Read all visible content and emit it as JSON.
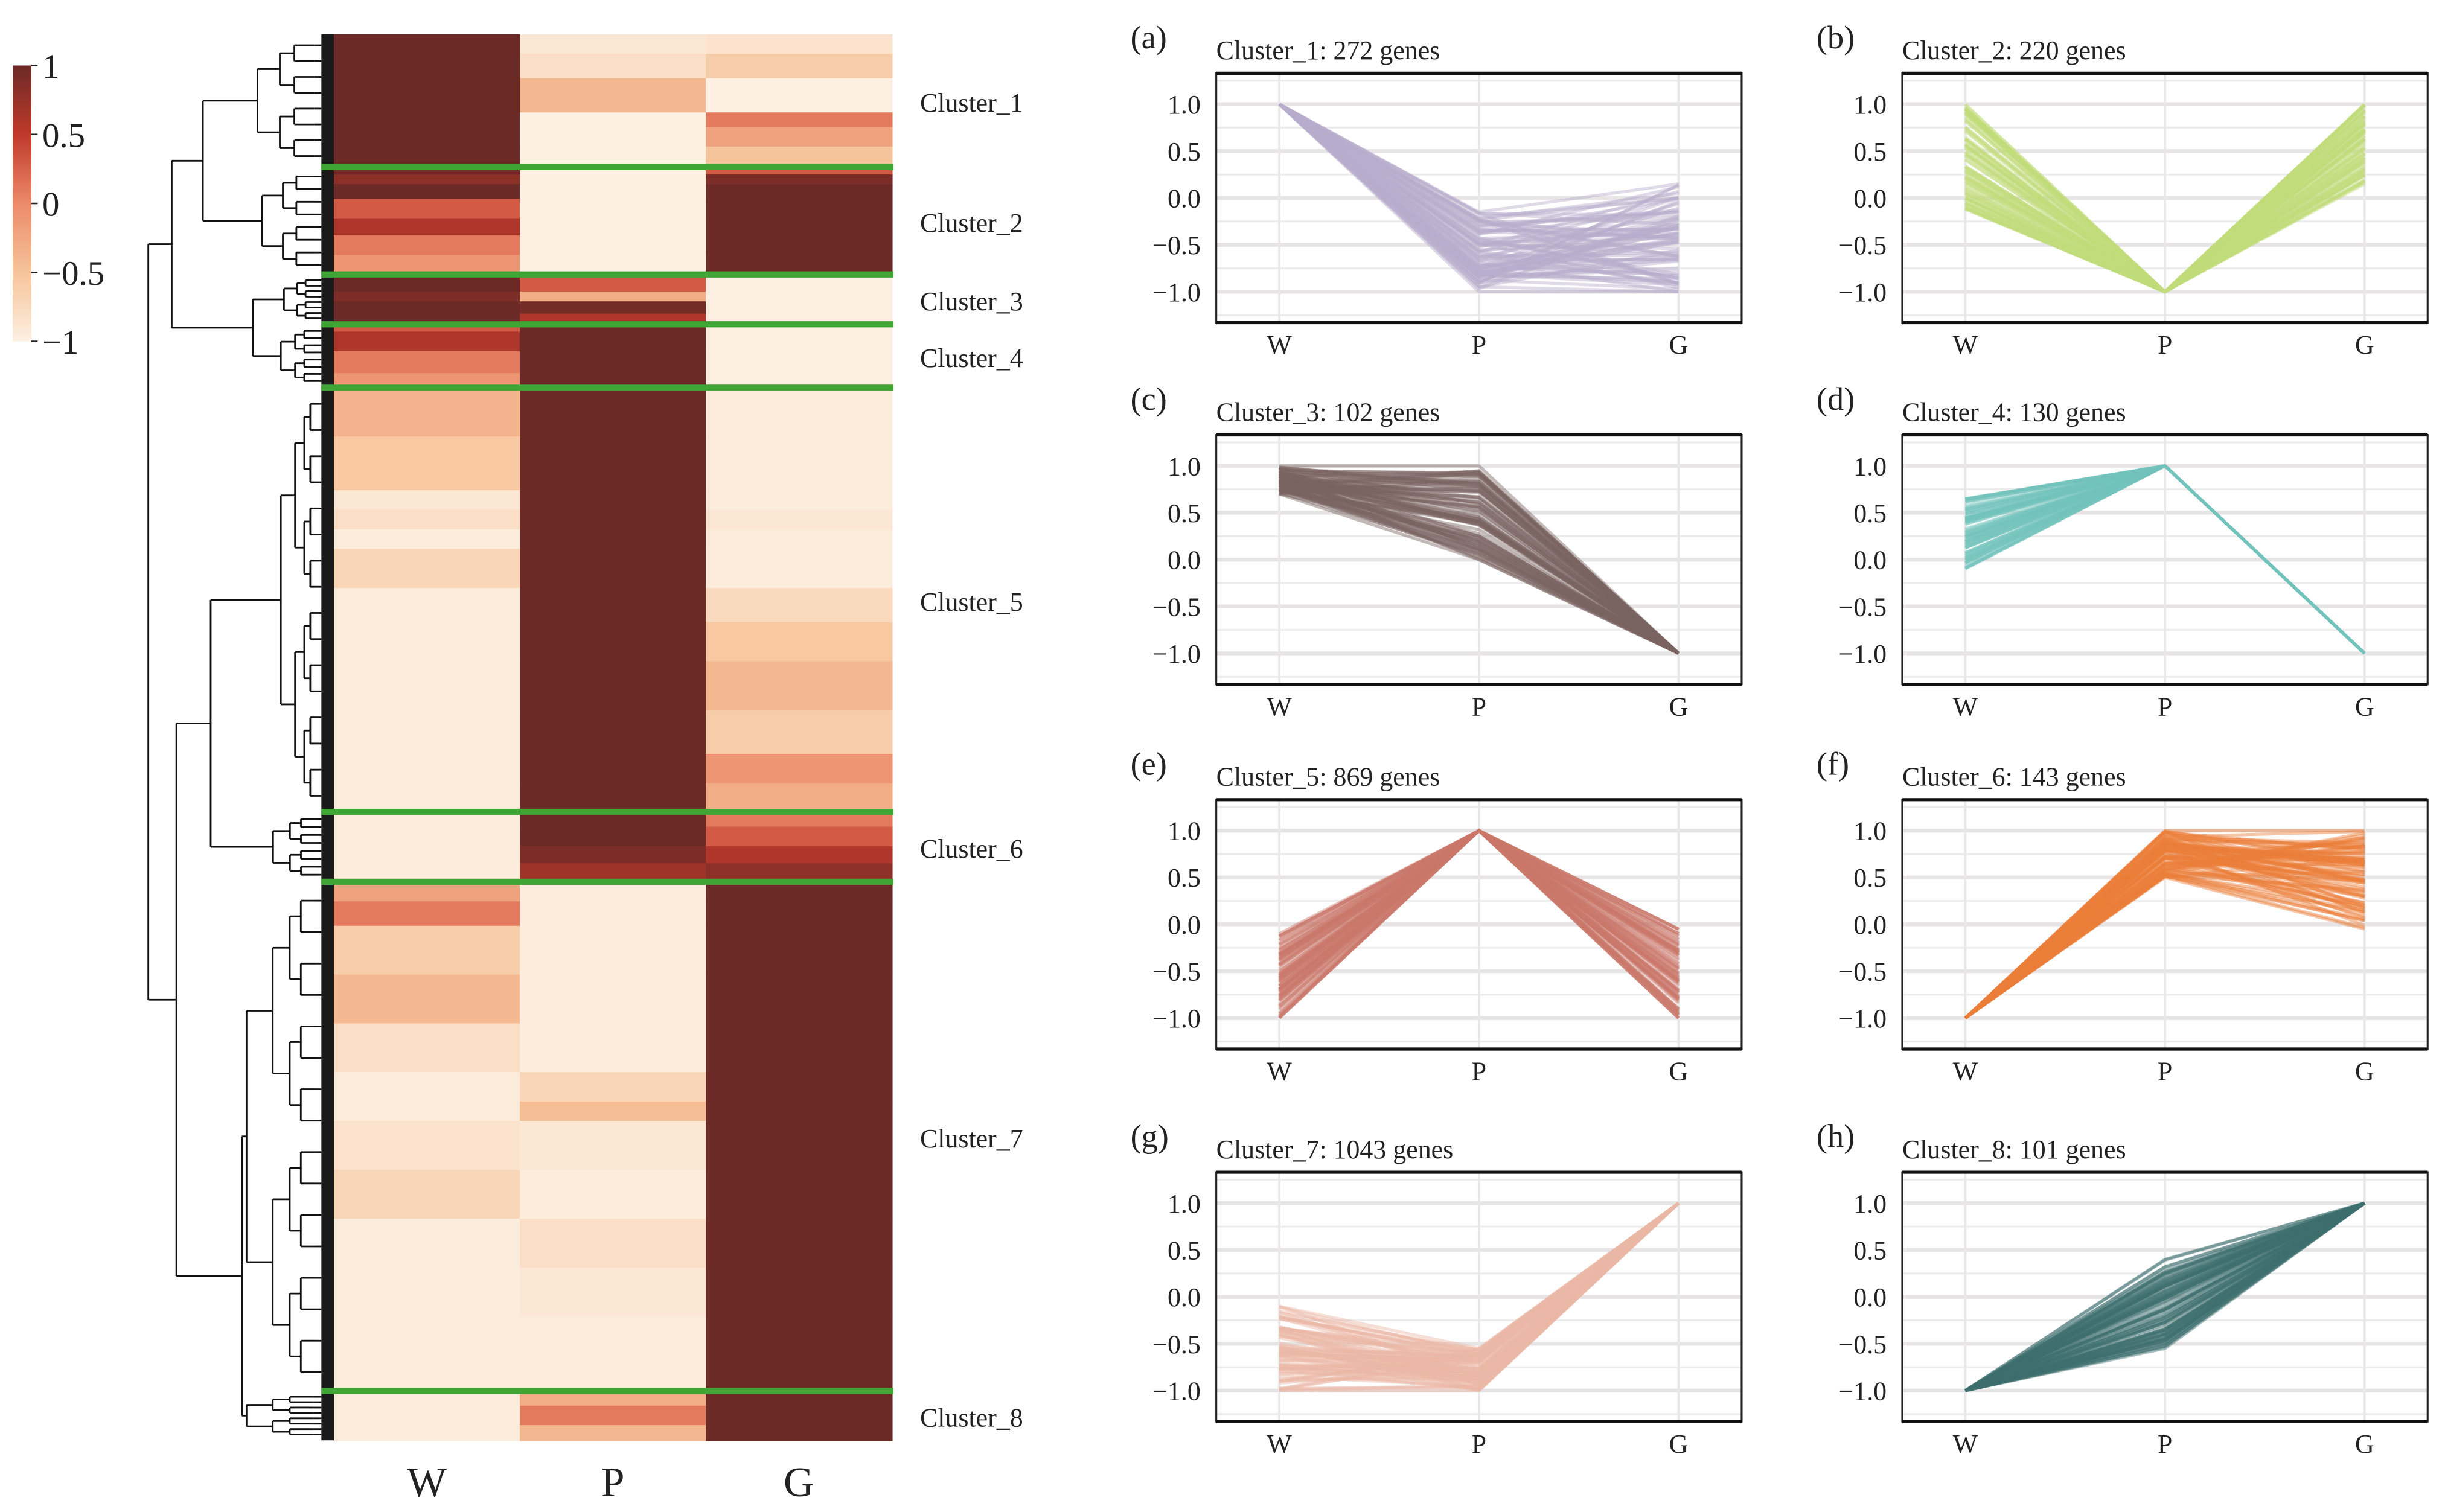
{
  "colorbar": {
    "ticks": [
      "1",
      "0.5",
      "0",
      "−0.5",
      "−1"
    ],
    "tick_values": [
      1,
      0.5,
      0,
      -0.5,
      -1
    ],
    "colors": [
      "#6b2a26",
      "#c0392b",
      "#ec8a6a",
      "#f6c49a",
      "#fdf0e3"
    ]
  },
  "separator_color": "#3fa535",
  "chart_data": [
    {
      "type": "heatmap",
      "title": "",
      "columns": [
        "W",
        "P",
        "G"
      ],
      "value_range": [
        -1,
        1
      ],
      "clusters": [
        {
          "label": "Cluster_1",
          "genes": 272,
          "stripes": [
            [
              40,
              1,
              -0.9,
              -0.85
            ],
            [
              50,
              1,
              -0.8,
              -0.6
            ],
            [
              70,
              1,
              -0.4,
              -1
            ],
            [
              30,
              1,
              -1,
              0.1
            ],
            [
              40,
              1,
              -1,
              -0.2
            ],
            [
              42,
              1,
              -1,
              -0.5
            ]
          ]
        },
        {
          "label": "Cluster_2",
          "genes": 220,
          "stripes": [
            [
              15,
              1,
              -1,
              0.3
            ],
            [
              20,
              0.8,
              -1,
              0.9
            ],
            [
              30,
              1,
              -1,
              1
            ],
            [
              40,
              0.3,
              -1,
              1
            ],
            [
              35,
              0.6,
              -1,
              1
            ],
            [
              40,
              0.1,
              -1,
              1
            ],
            [
              40,
              -0.1,
              -1,
              1
            ]
          ]
        },
        {
          "label": "Cluster_3",
          "genes": 102,
          "stripes": [
            [
              35,
              1,
              0.3,
              -1
            ],
            [
              20,
              0.9,
              -0.3,
              -1
            ],
            [
              25,
              1,
              0.95,
              -1
            ],
            [
              22,
              1,
              0.6,
              -1
            ]
          ]
        },
        {
          "label": "Cluster_4",
          "genes": 130,
          "stripes": [
            [
              15,
              0.3,
              1,
              -1
            ],
            [
              40,
              0.6,
              1,
              -1
            ],
            [
              45,
              0.1,
              1,
              -1
            ],
            [
              30,
              -0.1,
              1,
              -1
            ]
          ]
        },
        {
          "label": "Cluster_5",
          "genes": 869,
          "stripes": [
            [
              100,
              -0.35,
              1,
              -0.95
            ],
            [
              110,
              -0.55,
              1,
              -0.95
            ],
            [
              40,
              -0.9,
              1,
              -0.95
            ],
            [
              40,
              -0.8,
              1,
              -0.9
            ],
            [
              40,
              -0.95,
              1,
              -0.95
            ],
            [
              80,
              -0.7,
              1,
              -0.95
            ],
            [
              70,
              -0.95,
              1,
              -0.75
            ],
            [
              80,
              -0.95,
              1,
              -0.55
            ],
            [
              100,
              -0.95,
              1,
              -0.4
            ],
            [
              90,
              -0.95,
              1,
              -0.6
            ],
            [
              60,
              -0.95,
              1,
              -0.1
            ],
            [
              59,
              -0.95,
              1,
              -0.3
            ]
          ]
        },
        {
          "label": "Cluster_6",
          "genes": 143,
          "stripes": [
            [
              30,
              -0.95,
              1,
              0.1
            ],
            [
              40,
              -0.95,
              1,
              0.3
            ],
            [
              35,
              -0.95,
              0.9,
              0.6
            ],
            [
              38,
              -0.95,
              0.7,
              0.8
            ]
          ]
        },
        {
          "label": "Cluster_7",
          "genes": 1043,
          "stripes": [
            [
              40,
              -0.2,
              -0.95,
              1
            ],
            [
              50,
              0.1,
              -0.95,
              1
            ],
            [
              100,
              -0.6,
              -0.95,
              1
            ],
            [
              100,
              -0.4,
              -0.95,
              1
            ],
            [
              100,
              -0.8,
              -0.95,
              1
            ],
            [
              60,
              -0.95,
              -0.7,
              1
            ],
            [
              40,
              -0.95,
              -0.45,
              1
            ],
            [
              100,
              -0.85,
              -0.9,
              1
            ],
            [
              100,
              -0.7,
              -0.95,
              1
            ],
            [
              100,
              -0.95,
              -0.8,
              1
            ],
            [
              100,
              -0.95,
              -0.9,
              1
            ],
            [
              153,
              -0.95,
              -0.95,
              1
            ]
          ]
        },
        {
          "label": "Cluster_8",
          "genes": 101,
          "stripes": [
            [
              30,
              -0.95,
              -0.3,
              1
            ],
            [
              40,
              -0.95,
              0.1,
              1
            ],
            [
              31,
              -0.95,
              -0.4,
              1
            ]
          ]
        }
      ]
    },
    {
      "type": "line",
      "panel": "(a)",
      "title": "Cluster_1: 272 genes",
      "color": "#b9aecb",
      "categories": [
        "W",
        "P",
        "G"
      ],
      "ranges": [
        [
          1,
          1
        ],
        [
          -1,
          -0.15
        ],
        [
          -1,
          0.15
        ]
      ],
      "yticks": [
        "1.0",
        "0.5",
        "0.0",
        "−0.5",
        "−1.0"
      ],
      "ylim": [
        -1.33,
        1.33
      ]
    },
    {
      "type": "line",
      "panel": "(b)",
      "title": "Cluster_2: 220 genes",
      "color": "#c2dc7a",
      "categories": [
        "W",
        "P",
        "G"
      ],
      "ranges": [
        [
          -0.12,
          1
        ],
        [
          -1,
          -1
        ],
        [
          0.15,
          1
        ]
      ],
      "yticks": [
        "1.0",
        "0.5",
        "0.0",
        "−0.5",
        "−1.0"
      ],
      "ylim": [
        -1.33,
        1.33
      ]
    },
    {
      "type": "line",
      "panel": "(c)",
      "title": "Cluster_3: 102 genes",
      "color": "#7a6462",
      "categories": [
        "W",
        "P",
        "G"
      ],
      "ranges": [
        [
          0.7,
          1
        ],
        [
          0,
          1
        ],
        [
          -1,
          -1
        ]
      ],
      "yticks": [
        "1.0",
        "0.5",
        "0.0",
        "−0.5",
        "−1.0"
      ],
      "ylim": [
        -1.33,
        1.33
      ]
    },
    {
      "type": "line",
      "panel": "(d)",
      "title": "Cluster_4: 130 genes",
      "color": "#74c3bd",
      "categories": [
        "W",
        "P",
        "G"
      ],
      "ranges": [
        [
          -0.1,
          0.65
        ],
        [
          1,
          1
        ],
        [
          -1,
          -1
        ]
      ],
      "yticks": [
        "1.0",
        "0.5",
        "0.0",
        "−0.5",
        "−1.0"
      ],
      "ylim": [
        -1.33,
        1.33
      ]
    },
    {
      "type": "line",
      "panel": "(e)",
      "title": "Cluster_5: 869 genes",
      "color": "#c9786a",
      "categories": [
        "W",
        "P",
        "G"
      ],
      "ranges": [
        [
          -1,
          -0.1
        ],
        [
          1,
          1
        ],
        [
          -1,
          -0.05
        ]
      ],
      "yticks": [
        "1.0",
        "0.5",
        "0.0",
        "−0.5",
        "−1.0"
      ],
      "ylim": [
        -1.33,
        1.33
      ]
    },
    {
      "type": "line",
      "panel": "(f)",
      "title": "Cluster_6: 143 genes",
      "color": "#ea7e3a",
      "categories": [
        "W",
        "P",
        "G"
      ],
      "ranges": [
        [
          -1,
          -1
        ],
        [
          0.5,
          1
        ],
        [
          -0.05,
          1
        ]
      ],
      "yticks": [
        "1.0",
        "0.5",
        "0.0",
        "−0.5",
        "−1.0"
      ],
      "ylim": [
        -1.33,
        1.33
      ]
    },
    {
      "type": "line",
      "panel": "(g)",
      "title": "Cluster_7: 1043 genes",
      "color": "#ebb8a6",
      "categories": [
        "W",
        "P",
        "G"
      ],
      "ranges": [
        [
          -1,
          -0.1
        ],
        [
          -1,
          -0.55
        ],
        [
          1,
          1
        ]
      ],
      "yticks": [
        "1.0",
        "0.5",
        "0.0",
        "−0.5",
        "−1.0"
      ],
      "ylim": [
        -1.33,
        1.33
      ]
    },
    {
      "type": "line",
      "panel": "(h)",
      "title": "Cluster_8: 101 genes",
      "color": "#3d6e6e",
      "categories": [
        "W",
        "P",
        "G"
      ],
      "ranges": [
        [
          -1,
          -1
        ],
        [
          -0.55,
          0.4
        ],
        [
          1,
          1
        ]
      ],
      "yticks": [
        "1.0",
        "0.5",
        "0.0",
        "−0.5",
        "−1.0"
      ],
      "ylim": [
        -1.33,
        1.33
      ]
    }
  ]
}
